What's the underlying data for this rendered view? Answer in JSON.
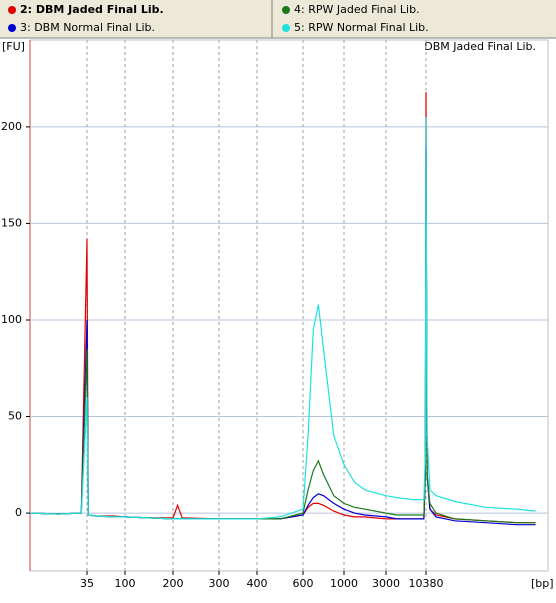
{
  "chart_data": {
    "type": "line",
    "title": "DBM Jaded Final Lib.",
    "y_label": "[FU]",
    "x_label": "[bp]",
    "x": [
      15,
      25,
      33,
      35,
      37,
      50,
      80,
      100,
      150,
      200,
      210,
      220,
      300,
      400,
      500,
      600,
      650,
      700,
      750,
      800,
      900,
      1000,
      1500,
      2000,
      3000,
      5000,
      8000,
      10000,
      10250,
      10380,
      10550,
      11000,
      12000,
      15000,
      20000,
      25000,
      28000
    ],
    "series": [
      {
        "name": "2: DBM Jaded Final Lib.",
        "color": "#e00000",
        "values": [
          0,
          -0.5,
          0,
          142,
          -1,
          -1.5,
          -1.5,
          -2,
          -2.5,
          -2.5,
          4,
          -2.5,
          -3,
          -3,
          -3,
          -1,
          3,
          5,
          5,
          4,
          1,
          -1,
          -2,
          -2,
          -3,
          -3,
          -3,
          -3,
          20,
          218,
          20,
          2,
          -1,
          -3,
          -4,
          -5,
          -5
        ]
      },
      {
        "name": "3: DBM Normal Final Lib.",
        "color": "#0000d0",
        "values": [
          0,
          -0.5,
          0,
          100,
          -1,
          -1.5,
          -2,
          -2,
          -2.5,
          -3,
          -3,
          -3,
          -3,
          -3,
          -3,
          -1,
          4,
          8,
          10,
          9,
          5,
          2,
          0,
          -1,
          -2,
          -3,
          -3,
          -3,
          20,
          190,
          20,
          2,
          -2,
          -4,
          -5,
          -6,
          -6
        ]
      },
      {
        "name": "4: RPW Jaded Final Lib.",
        "color": "#1a7a1a",
        "values": [
          0,
          -0.5,
          0,
          85,
          -1,
          -1.5,
          -2,
          -2,
          -2.5,
          -3,
          -3,
          -3,
          -3,
          -3,
          -3,
          0,
          12,
          22,
          27,
          20,
          9,
          5,
          3,
          2,
          0,
          -1,
          -1,
          -1,
          20,
          150,
          20,
          5,
          0,
          -3,
          -4,
          -5,
          -5
        ]
      },
      {
        "name": "5: RPW Normal Final Lib.",
        "color": "#20e0e0",
        "values": [
          0,
          -0.5,
          0,
          60,
          -1,
          -1.5,
          -2,
          -2,
          -2.5,
          -3,
          -3,
          -3,
          -3,
          -3,
          -2,
          2,
          40,
          95,
          108,
          85,
          40,
          25,
          16,
          12,
          9,
          8,
          7,
          7,
          30,
          205,
          40,
          12,
          9,
          6,
          3,
          2,
          1
        ]
      }
    ],
    "xlim": [
      15,
      30000
    ],
    "xticks": [
      35,
      100,
      200,
      300,
      400,
      600,
      1000,
      3000,
      10380
    ],
    "ylim": [
      -30,
      245
    ],
    "yticks": [
      0,
      50,
      100,
      150,
      200
    ],
    "grid": true
  }
}
